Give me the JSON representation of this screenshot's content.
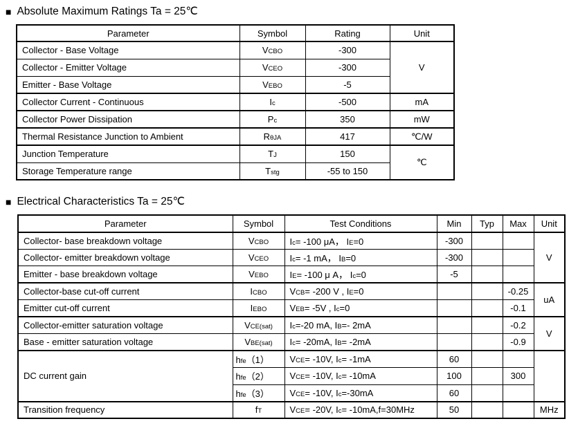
{
  "colors": {
    "text": "#000000",
    "border": "#000000",
    "background": "#ffffff"
  },
  "sections": {
    "abs_max": {
      "bullet": "■",
      "title": "Absolute Maximum Ratings Ta = 25℃",
      "headers": [
        "Parameter",
        "Symbol",
        "Rating",
        "Unit"
      ],
      "rows": [
        {
          "param": "Collector - Base Voltage",
          "symbol": "V<sub>CBO</sub>",
          "rating": "-300",
          "unit": "V"
        },
        {
          "param": "Collector - Emitter Voltage",
          "symbol": "V<sub>CEO</sub>",
          "rating": "-300"
        },
        {
          "param": "Emitter - Base Voltage",
          "symbol": "V<sub>EBO</sub>",
          "rating": "-5"
        },
        {
          "param": "Collector Current  - Continuous",
          "symbol": "I<sub>c</sub>",
          "rating": "-500",
          "unit": "mA"
        },
        {
          "param": "Collector Power Dissipation",
          "symbol": "P<sub>c</sub>",
          "rating": "350",
          "unit": "mW"
        },
        {
          "param": "Thermal Resistance Junction to Ambient",
          "symbol": "R<sub>θJA</sub>",
          "rating": "417",
          "unit": "℃/W"
        },
        {
          "param": "Junction Temperature",
          "symbol": "T<sub>J</sub>",
          "rating": "150",
          "unit": "℃"
        },
        {
          "param": "Storage Temperature range",
          "symbol": "T<sub>stg</sub>",
          "rating": "-55 to 150"
        }
      ]
    },
    "elec_char": {
      "bullet": "■",
      "title": "Electrical Characteristics Ta = 25℃",
      "headers": [
        "Parameter",
        "Symbol",
        "Test Conditions",
        "Min",
        "Typ",
        "Max",
        "Unit"
      ],
      "rows": [
        {
          "param": "Collector- base breakdown voltage",
          "symbol": "V<sub>CBO</sub>",
          "cond": "I<sub>c</sub>= -100 μA， I<sub>E</sub>=0",
          "min": "-300",
          "typ": "",
          "max": "",
          "unit": "V"
        },
        {
          "param": "Collector- emitter breakdown voltage",
          "symbol": "V<sub>CEO</sub>",
          "cond": "I<sub>c</sub>= -1 mA， I<sub>B</sub>=0",
          "min": "-300",
          "typ": "",
          "max": ""
        },
        {
          "param": "Emitter - base breakdown voltage",
          "symbol": "V<sub>EBO</sub>",
          "cond": "I<sub>E</sub>= -100 μ A， I<sub>c</sub>=0",
          "min": "-5",
          "typ": "",
          "max": ""
        },
        {
          "param": "Collector-base cut-off current",
          "symbol": "I<sub>CBO</sub>",
          "cond": "V<sub>CB</sub>= -200 V , I<sub>E</sub>=0",
          "min": "",
          "typ": "",
          "max": "-0.25",
          "unit": "uA"
        },
        {
          "param": "Emitter cut-off current",
          "symbol": "I<sub>EBO</sub>",
          "cond": "V<sub>EB</sub>= -5V , I<sub>c</sub>=0",
          "min": "",
          "typ": "",
          "max": "-0.1"
        },
        {
          "param": "Collector-emitter saturation voltage",
          "symbol": "V<sub>CE(sat)</sub>",
          "cond": "I<sub>c</sub>=-20 mA, I<sub>B</sub>=- 2mA",
          "min": "",
          "typ": "",
          "max": "-0.2",
          "unit": "V"
        },
        {
          "param": "Base - emitter saturation voltage",
          "symbol": "V<sub>BE(sat)</sub>",
          "cond": "I<sub>c</sub>= -20mA, I<sub>B</sub>= -2mA",
          "min": "",
          "typ": "",
          "max": "-0.9"
        },
        {
          "param": "DC current gain",
          "symbol": "h<sub>fe</sub>（1）",
          "cond": "V<sub>CE</sub>= -10V, I<sub>c</sub>= -1mA",
          "min": "60",
          "typ": "",
          "max": "",
          "unit": ""
        },
        {
          "symbol": "h<sub>fe</sub>（2）",
          "cond": "V<sub>CE</sub>= -10V, I<sub>c</sub>= -10mA",
          "min": "100",
          "typ": "",
          "max": "300"
        },
        {
          "symbol": "h<sub>fe</sub>（3）",
          "cond": "V<sub>CE</sub>= -10V, I<sub>c</sub>=-30mA",
          "min": "60",
          "typ": "",
          "max": ""
        },
        {
          "param": "Transition frequency",
          "symbol": "f<sub>T</sub>",
          "cond": "V<sub>CE</sub>= -20V, I<sub>c</sub>= -10mA,f=30MHz",
          "min": "50",
          "typ": "",
          "max": "",
          "unit": "MHz"
        }
      ]
    }
  }
}
